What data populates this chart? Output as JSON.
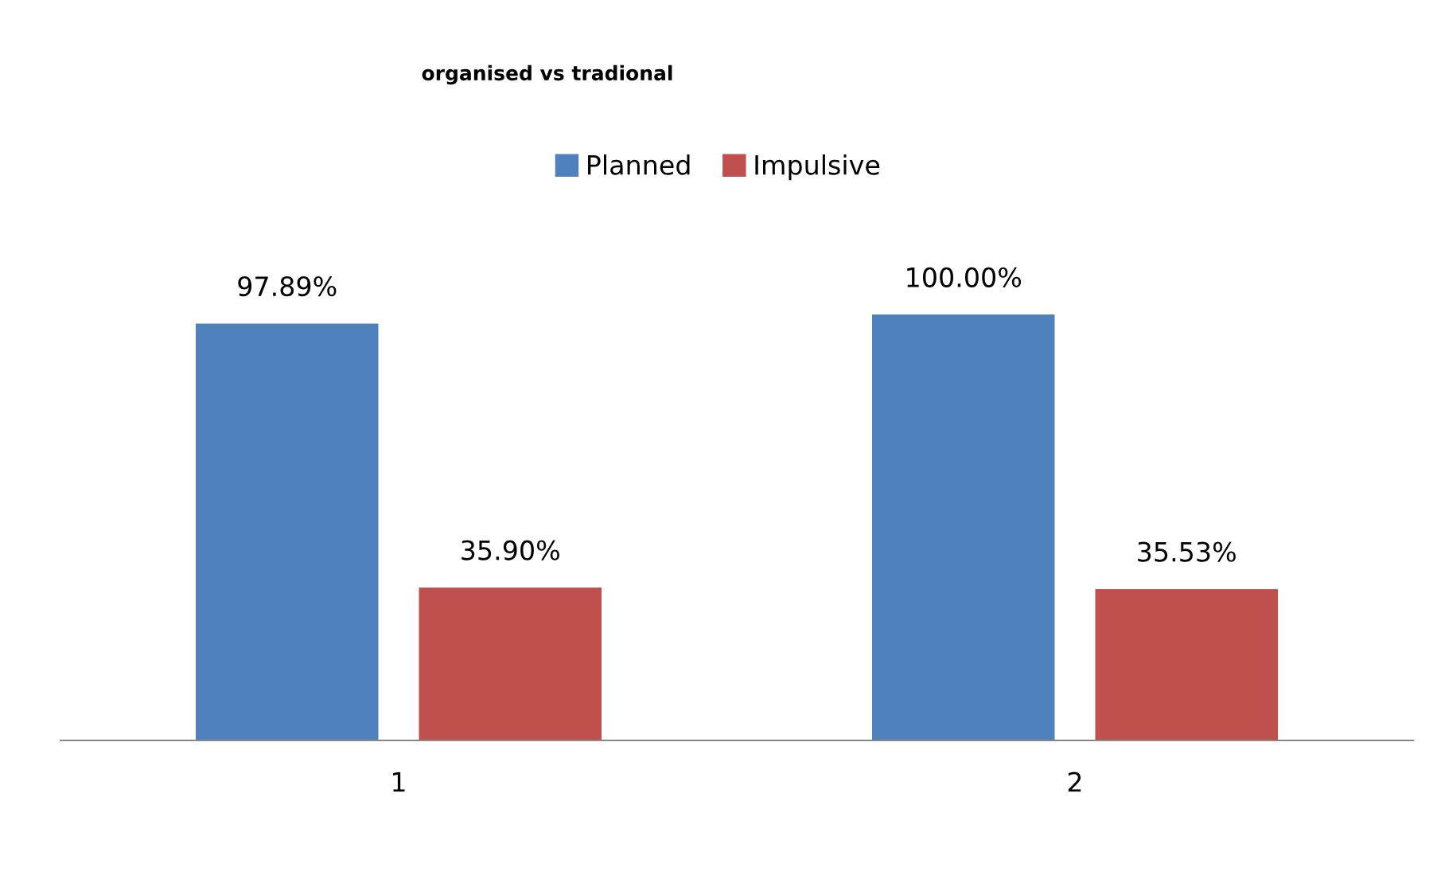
{
  "chart_data": {
    "type": "bar",
    "title": "organised vs tradional",
    "categories": [
      "1",
      "2"
    ],
    "series": [
      {
        "name": "Planned",
        "color": "#4f81bd",
        "values": [
          97.89,
          100.0
        ],
        "value_labels": [
          "97.89%",
          "100.00%"
        ]
      },
      {
        "name": "Impulsive",
        "color": "#c0504d",
        "values": [
          35.9,
          35.53
        ],
        "value_labels": [
          "35.90%",
          "35.53%"
        ]
      }
    ],
    "legend": "top",
    "grid": false
  }
}
